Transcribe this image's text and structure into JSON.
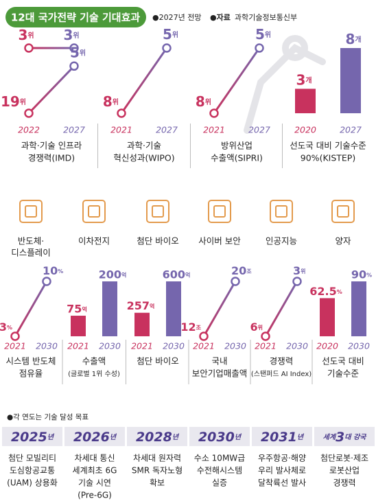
{
  "header": {
    "title": "12대 국가전략 기술 기대효과",
    "legend": "●2027년 전망",
    "source_label": "●자료",
    "source": "과학기술정보통신부"
  },
  "colors": {
    "start": "#c8325e",
    "end": "#7566ad",
    "title_bg": "#4c9a3a"
  },
  "top_panels": [
    {
      "type": "slope-rank",
      "log": true,
      "years": [
        "2022",
        "2027"
      ],
      "unit": "위",
      "series": [
        {
          "values": [
            3,
            3
          ]
        },
        {
          "values": [
            19,
            5
          ]
        }
      ],
      "label": [
        "과학·기술 인프라",
        "경쟁력(IMD)"
      ]
    },
    {
      "type": "slope-rank",
      "log": true,
      "years": [
        "2021",
        "2027"
      ],
      "unit": "위",
      "series": [
        {
          "values": [
            8,
            5
          ]
        }
      ],
      "label": [
        "과학·기술",
        "혁신성과(WIPO)"
      ]
    },
    {
      "type": "slope-rank",
      "log": true,
      "years": [
        "2021",
        "2027"
      ],
      "unit": "위",
      "series": [
        {
          "values": [
            8,
            5
          ]
        }
      ],
      "label": [
        "방위산업",
        "수출액(SIPRI)"
      ]
    },
    {
      "type": "bar",
      "years": [
        "2020",
        "2027"
      ],
      "unit": "개",
      "series": [
        {
          "values": [
            3,
            8
          ]
        }
      ],
      "label": [
        "선도국 대비 기술수준",
        "90%(KISTEP)"
      ]
    }
  ],
  "technologies": [
    [
      "반도체·",
      "디스플레이"
    ],
    [
      "이차전지"
    ],
    [
      "첨단 바이오"
    ],
    [
      "사이버 보안"
    ],
    [
      "인공지능"
    ],
    [
      "양자"
    ]
  ],
  "bottom_panels": [
    {
      "type": "slope",
      "years": [
        "2021",
        "2030"
      ],
      "unit": "%",
      "series": [
        {
          "values": [
            3,
            10
          ]
        }
      ],
      "label": [
        "시스템 반도체",
        "점유율"
      ]
    },
    {
      "type": "bar",
      "years": [
        "2021",
        "2030"
      ],
      "unit": "억",
      "series": [
        {
          "values": [
            75,
            200
          ]
        }
      ],
      "label": [
        "수출액",
        "(글로벌 1위 수성)"
      ]
    },
    {
      "type": "bar",
      "years": [
        "2021",
        "2030"
      ],
      "unit": "억",
      "series": [
        {
          "values": [
            257,
            600
          ]
        }
      ],
      "label": [
        "첨단 바이오"
      ]
    },
    {
      "type": "slope",
      "years": [
        "2021",
        "2030"
      ],
      "unit": "조",
      "series": [
        {
          "values": [
            12,
            20
          ]
        }
      ],
      "label": [
        "국내",
        "보안기업매출액"
      ]
    },
    {
      "type": "slope-rank",
      "years": [
        "2021",
        "2030"
      ],
      "unit": "위",
      "series": [
        {
          "values": [
            6,
            3
          ]
        }
      ],
      "label": [
        "경쟁력",
        "(스탠퍼드 AI Index)"
      ]
    },
    {
      "type": "bar",
      "years": [
        "2020",
        "2030"
      ],
      "unit": "%",
      "series": [
        {
          "values": [
            62.5,
            90
          ]
        }
      ],
      "label": [
        "선도국 대비",
        "기술수준"
      ]
    }
  ],
  "goals_note": "●각 연도는 기술 달성 목표",
  "goals": [
    {
      "big": "2025",
      "small": "년",
      "text": [
        "첨단 모빌리티",
        "도심항공교통",
        "(UAM) 상용화"
      ]
    },
    {
      "big": "2026",
      "small": "년",
      "text": [
        "차세대 통신",
        "세계최초 6G",
        "기술 시연",
        "(Pre-6G)"
      ]
    },
    {
      "big": "2028",
      "small": "년",
      "text": [
        "차세대 원자력",
        "SMR 독자노형",
        "확보"
      ]
    },
    {
      "big": "2030",
      "small": "년",
      "text": [
        "수소 10MW급",
        "수전해시스템",
        "실증"
      ]
    },
    {
      "big": "2031",
      "small": "년",
      "text": [
        "우주항공·해양",
        "우리 발사체로",
        "달착륙선 발사"
      ]
    },
    {
      "prefix": "세계",
      "big": "3",
      "small": "대 강국",
      "text": [
        "첨단로봇·제조",
        "로봇산업",
        "경쟁력"
      ]
    }
  ]
}
